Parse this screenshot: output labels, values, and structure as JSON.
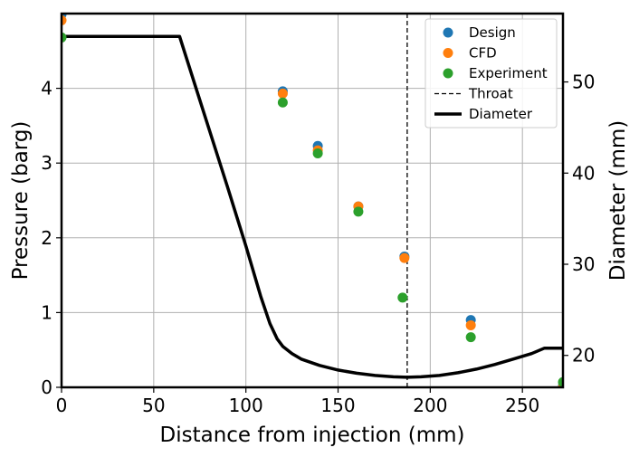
{
  "chart_data": {
    "type": "scatter",
    "xlabel": "Distance from injection (mm)",
    "ylabel_left": "Pressure (barg)",
    "ylabel_right": "Diameter (mm)",
    "xlim": [
      0,
      272
    ],
    "ylim_left": [
      0,
      5.0
    ],
    "ylim_right": [
      16.5,
      57.5
    ],
    "x_ticks": [
      0,
      50,
      100,
      150,
      200,
      250
    ],
    "y_ticks_left": [
      0,
      1,
      2,
      3,
      4
    ],
    "y_ticks_right": [
      20,
      30,
      40,
      50
    ],
    "grid": true,
    "legend_position": "top-right",
    "series": [
      {
        "name": "Design",
        "kind": "scatter",
        "axis": "left",
        "color": "#1f77b4",
        "points": [
          [
            0,
            4.99
          ],
          [
            120,
            3.96
          ],
          [
            139,
            3.23
          ],
          [
            161,
            2.42
          ],
          [
            186,
            1.75
          ],
          [
            222,
            0.9
          ],
          [
            272,
            0.02
          ]
        ]
      },
      {
        "name": "CFD",
        "kind": "scatter",
        "axis": "left",
        "color": "#ff7f0e",
        "points": [
          [
            0,
            4.91
          ],
          [
            120,
            3.93
          ],
          [
            139,
            3.17
          ],
          [
            161,
            2.42
          ],
          [
            186,
            1.73
          ],
          [
            222,
            0.83
          ],
          [
            272,
            0.0
          ]
        ]
      },
      {
        "name": "Experiment",
        "kind": "scatter",
        "axis": "left",
        "color": "#2ca02c",
        "points": [
          [
            0,
            4.68
          ],
          [
            120,
            3.81
          ],
          [
            139,
            3.13
          ],
          [
            161,
            2.35
          ],
          [
            185,
            1.2
          ],
          [
            222,
            0.67
          ],
          [
            272,
            0.07
          ]
        ]
      },
      {
        "name": "Throat",
        "kind": "vline",
        "color": "#000000",
        "x": 187.5
      },
      {
        "name": "Diameter",
        "kind": "line",
        "axis": "right",
        "color": "#000000",
        "points": [
          [
            0,
            55.0
          ],
          [
            20,
            55.0
          ],
          [
            40,
            55.0
          ],
          [
            64,
            55.0
          ],
          [
            75,
            48.0
          ],
          [
            90,
            38.5
          ],
          [
            100,
            32.0
          ],
          [
            108,
            26.5
          ],
          [
            113,
            23.5
          ],
          [
            117,
            21.8
          ],
          [
            120,
            21.0
          ],
          [
            125,
            20.2
          ],
          [
            130,
            19.6
          ],
          [
            140,
            18.9
          ],
          [
            150,
            18.4
          ],
          [
            160,
            18.05
          ],
          [
            170,
            17.8
          ],
          [
            180,
            17.65
          ],
          [
            187.5,
            17.6
          ],
          [
            195,
            17.65
          ],
          [
            205,
            17.8
          ],
          [
            215,
            18.1
          ],
          [
            225,
            18.5
          ],
          [
            235,
            19.0
          ],
          [
            245,
            19.6
          ],
          [
            255,
            20.2
          ],
          [
            262,
            20.8
          ],
          [
            266,
            20.8
          ],
          [
            272,
            20.8
          ]
        ]
      }
    ]
  }
}
